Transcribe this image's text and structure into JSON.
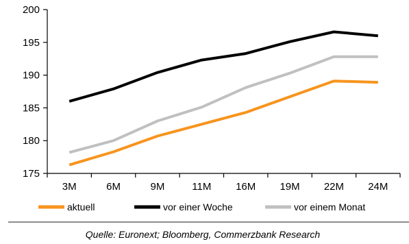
{
  "chart_data": {
    "type": "line",
    "categories": [
      "3M",
      "6M",
      "9M",
      "11M",
      "16M",
      "19M",
      "22M",
      "24M"
    ],
    "series": [
      {
        "name": "aktuell",
        "color": "#f7941d",
        "values": [
          176.3,
          178.3,
          180.7,
          182.5,
          184.3,
          186.7,
          189.1,
          188.9
        ]
      },
      {
        "name": "vor einer Woche",
        "color": "#000000",
        "values": [
          186.0,
          187.9,
          190.4,
          192.3,
          193.3,
          195.1,
          196.6,
          196.0
        ]
      },
      {
        "name": "vor einem Monat",
        "color": "#c0c0c0",
        "values": [
          178.2,
          180.0,
          183.0,
          185.1,
          188.1,
          190.3,
          192.8,
          192.8
        ]
      }
    ],
    "ylim": [
      175,
      200
    ],
    "yticks": [
      175,
      180,
      185,
      190,
      195,
      200
    ],
    "grid": false,
    "legend_position": "bottom"
  },
  "source_text": "Quelle: Euronext; Bloomberg, Commerzbank Research"
}
